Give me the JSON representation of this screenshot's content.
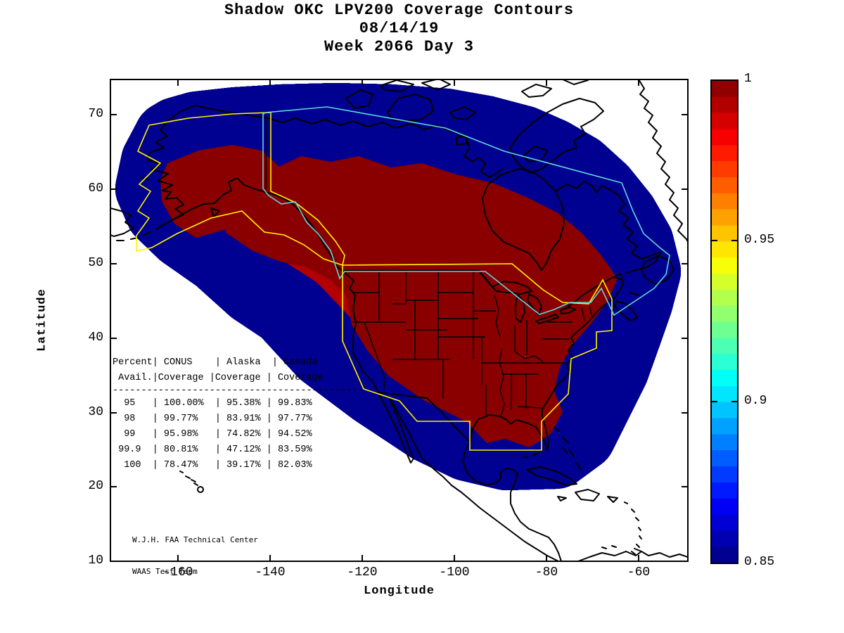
{
  "title": {
    "line1": "Shadow OKC LPV200 Coverage Contours",
    "line2": "08/14/19",
    "line3": "Week 2066 Day 3"
  },
  "axes": {
    "x": {
      "label": "Longitude",
      "ticks": [
        "-160",
        "-140",
        "-120",
        "-100",
        "-80",
        "-60"
      ]
    },
    "y": {
      "label": "Latitude",
      "ticks": [
        "70",
        "60",
        "50",
        "40",
        "30",
        "20",
        "10"
      ]
    }
  },
  "colorbar": {
    "tick_labels": [
      "1",
      "0.95",
      "0.9",
      "0.85"
    ],
    "min": 0.85,
    "max": 1,
    "colors": [
      "#000091",
      "#0000B2",
      "#0000D5",
      "#0000F6",
      "#001AFF",
      "#003BFF",
      "#005DFF",
      "#0080FF",
      "#00A1FF",
      "#00C4FF",
      "#00E6FF",
      "#00FFF6",
      "#2AFFD5",
      "#4CFFB2",
      "#6EFF91",
      "#91FF6E",
      "#B2FF4C",
      "#D5FF2A",
      "#F6FF08",
      "#FFE600",
      "#FFC400",
      "#FFA100",
      "#FF8000",
      "#FF5D00",
      "#FF3B00",
      "#FF1A00",
      "#F60000",
      "#D50000",
      "#B20000",
      "#910000"
    ]
  },
  "coverage_table": {
    "header_line1": "Percent| CONUS    | Alaska  | Canada",
    "header_line2": " Avail.|Coverage |Coverage | Coverage",
    "divider": "--------------------------------------------",
    "rows": [
      {
        "avail": "95",
        "conus": "100.00%",
        "alaska": "95.38%",
        "canada": "99.83%"
      },
      {
        "avail": "98",
        "conus": "99.77%",
        "alaska": "83.91%",
        "canada": "97.77%"
      },
      {
        "avail": "99",
        "conus": "95.98%",
        "alaska": "74.82%",
        "canada": "94.52%"
      },
      {
        "avail": "99.9",
        "conus": "80.81%",
        "alaska": "47.12%",
        "canada": "83.59%"
      },
      {
        "avail": "100",
        "conus": "78.47%",
        "alaska": "39.17%",
        "canada": "82.03%"
      }
    ]
  },
  "attribution": {
    "line1": "W.J.H. FAA Technical Center",
    "line2": "WAAS Test Team"
  },
  "map_colors": {
    "boundary_yellow": "#FFF200",
    "boundary_cyan": "#5FD8DC",
    "coastline_black": "#000000"
  },
  "chart_data": {
    "type": "heatmap",
    "subtype": "filled-contour-coverage-map",
    "title": "Shadow OKC LPV200 Coverage Contours",
    "date": "08/14/19",
    "week": 2066,
    "day": 3,
    "region": "North America",
    "xlabel": "Longitude",
    "ylabel": "Latitude",
    "xlim": [
      -175,
      -50
    ],
    "ylim": [
      10,
      75
    ],
    "x_ticks": [
      -160,
      -140,
      -120,
      -100,
      -80,
      -60
    ],
    "y_ticks": [
      10,
      20,
      30,
      40,
      50,
      60,
      70
    ],
    "colorbar": {
      "range": [
        0.85,
        1.0
      ],
      "ticks": [
        0.85,
        0.9,
        0.95,
        1
      ],
      "colormap": "jet",
      "position": "right"
    },
    "grid": false,
    "legend_position": "none",
    "overlays": [
      "coastlines",
      "us-state-borders",
      "alaska-service-volume-yellow",
      "conus-service-volume-yellow",
      "canada-service-volume-cyan"
    ],
    "coverage_stats": {
      "categories": [
        "95",
        "98",
        "99",
        "99.9",
        "100"
      ],
      "category_label": "Percent Avail.",
      "series": [
        {
          "name": "CONUS Coverage",
          "values": [
            100.0,
            99.77,
            95.98,
            80.81,
            78.47
          ]
        },
        {
          "name": "Alaska Coverage",
          "values": [
            95.38,
            83.91,
            74.82,
            47.12,
            39.17
          ]
        },
        {
          "name": "Canada Coverage",
          "values": [
            99.83,
            97.77,
            94.52,
            83.59,
            82.03
          ]
        }
      ]
    }
  }
}
